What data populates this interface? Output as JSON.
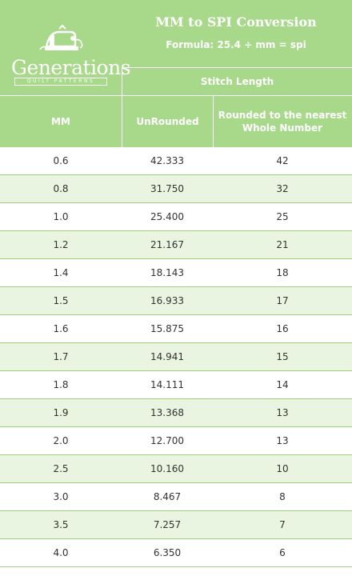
{
  "header": {
    "logo_name": "Generations",
    "logo_sub": "QUILT PATTERNS",
    "title": "MM to SPI Conversion",
    "formula": "Formula: 25.4 ÷ mm = spi",
    "group_label": "Stitch Length",
    "columns": [
      "MM",
      "UnRounded",
      "Rounded to the nearest Whole Number"
    ]
  },
  "colors": {
    "header_bg": "#a8d88a",
    "row_alt_bg": "#e9f5e0",
    "row_border": "#9fce7f"
  },
  "rows": [
    {
      "mm": "0.6",
      "unrounded": "42.333",
      "rounded": "42"
    },
    {
      "mm": "0.8",
      "unrounded": "31.750",
      "rounded": "32"
    },
    {
      "mm": "1.0",
      "unrounded": "25.400",
      "rounded": "25"
    },
    {
      "mm": "1.2",
      "unrounded": "21.167",
      "rounded": "21"
    },
    {
      "mm": "1.4",
      "unrounded": "18.143",
      "rounded": "18"
    },
    {
      "mm": "1.5",
      "unrounded": "16.933",
      "rounded": "17"
    },
    {
      "mm": "1.6",
      "unrounded": "15.875",
      "rounded": "16"
    },
    {
      "mm": "1.7",
      "unrounded": "14.941",
      "rounded": "15"
    },
    {
      "mm": "1.8",
      "unrounded": "14.111",
      "rounded": "14"
    },
    {
      "mm": "1.9",
      "unrounded": "13.368",
      "rounded": "13"
    },
    {
      "mm": "2.0",
      "unrounded": "12.700",
      "rounded": "13"
    },
    {
      "mm": "2.5",
      "unrounded": "10.160",
      "rounded": "10"
    },
    {
      "mm": "3.0",
      "unrounded": "8.467",
      "rounded": "8"
    },
    {
      "mm": "3.5",
      "unrounded": "7.257",
      "rounded": "7"
    },
    {
      "mm": "4.0",
      "unrounded": "6.350",
      "rounded": "6"
    }
  ]
}
